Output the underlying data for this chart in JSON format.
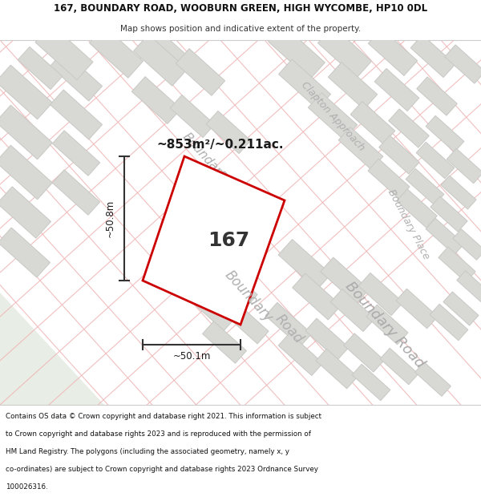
{
  "title_line1": "167, BOUNDARY ROAD, WOOBURN GREEN, HIGH WYCOMBE, HP10 0DL",
  "title_line2": "Map shows position and indicative extent of the property.",
  "area_text": "~853m²/~0.211ac.",
  "plot_number": "167",
  "dim_width": "~50.1m",
  "dim_height": "~50.8m",
  "footer_lines": [
    "Contains OS data © Crown copyright and database right 2021. This information is subject",
    "to Crown copyright and database rights 2023 and is reproduced with the permission of",
    "HM Land Registry. The polygons (including the associated geometry, namely x, y",
    "co-ordinates) are subject to Crown copyright and database rights 2023 Ordnance Survey",
    "100026316."
  ],
  "bg_color": "#f8f8f6",
  "map_bg": "#f9f8f6",
  "plot_fill": "#ffffff",
  "plot_edge": "#cc0000",
  "road_label_color": "#b0b0b0",
  "building_fill": "#d8d8d5",
  "building_edge": "#c8c8c5",
  "road_line_color": "#f0b8b8",
  "dim_line_color": "#333333",
  "footer_bg": "#ffffff",
  "title_bg": "#ffffff",
  "green_area_color": "#e8ede5"
}
